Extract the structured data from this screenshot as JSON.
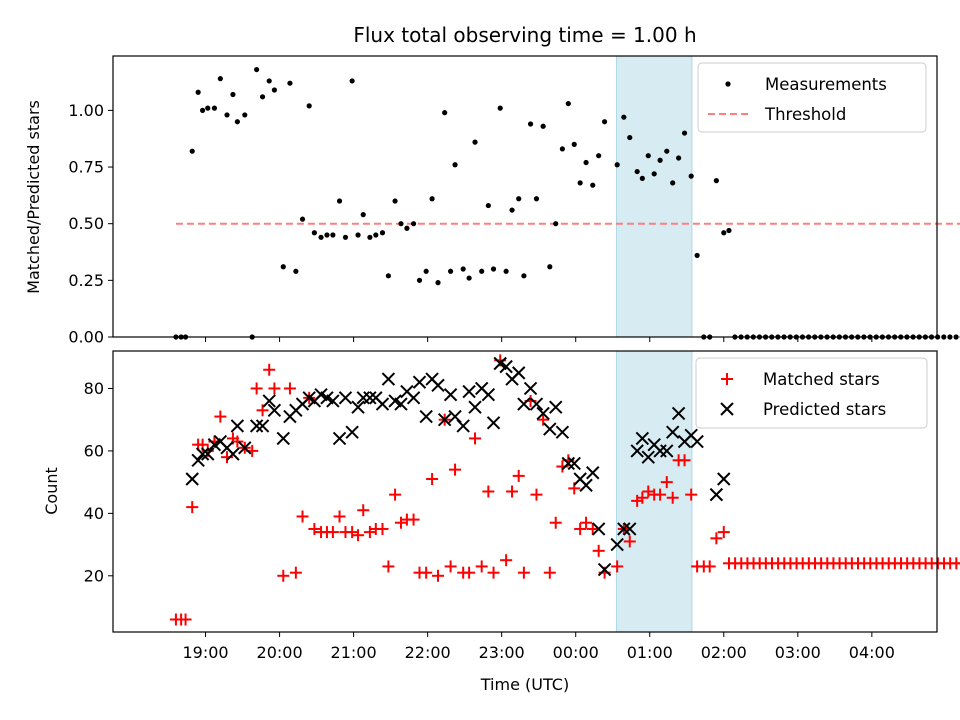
{
  "chart_data": [
    {
      "type": "scatter",
      "title": "Flux total observing time = 1.00 h",
      "xlabel": "",
      "ylabel": "Matched/Predicted stars",
      "ylim": [
        0,
        1.24
      ],
      "yticks": [
        "0.00",
        "0.25",
        "0.50",
        "0.75",
        "1.00"
      ],
      "xlim_hours": [
        17.75,
        28.88
      ],
      "highlight_band_hours": [
        24.55,
        25.57
      ],
      "highlight_color": "#add8e6",
      "legend_position": "upper right",
      "series": [
        {
          "name": "Measurements",
          "marker": "dot",
          "color": "#000000",
          "points": [
            [
              18.6,
              0.0
            ],
            [
              18.67,
              0.0
            ],
            [
              18.73,
              0.0
            ],
            [
              18.82,
              0.82
            ],
            [
              18.9,
              1.08
            ],
            [
              18.96,
              1.0
            ],
            [
              19.03,
              1.01
            ],
            [
              19.12,
              1.01
            ],
            [
              19.2,
              1.14
            ],
            [
              19.29,
              0.98
            ],
            [
              19.37,
              1.07
            ],
            [
              19.43,
              0.95
            ],
            [
              19.53,
              0.98
            ],
            [
              19.63,
              0.0
            ],
            [
              19.69,
              1.18
            ],
            [
              19.77,
              1.06
            ],
            [
              19.86,
              1.13
            ],
            [
              19.93,
              1.09
            ],
            [
              20.05,
              0.31
            ],
            [
              20.14,
              1.12
            ],
            [
              20.22,
              0.29
            ],
            [
              20.31,
              0.52
            ],
            [
              20.4,
              1.02
            ],
            [
              20.47,
              0.46
            ],
            [
              20.56,
              0.44
            ],
            [
              20.64,
              0.45
            ],
            [
              20.72,
              0.45
            ],
            [
              20.81,
              0.6
            ],
            [
              20.89,
              0.44
            ],
            [
              20.98,
              1.13
            ],
            [
              21.06,
              0.45
            ],
            [
              21.13,
              0.54
            ],
            [
              21.22,
              0.44
            ],
            [
              21.3,
              0.45
            ],
            [
              21.39,
              0.46
            ],
            [
              21.47,
              0.27
            ],
            [
              21.56,
              0.6
            ],
            [
              21.64,
              0.5
            ],
            [
              21.72,
              0.48
            ],
            [
              21.81,
              0.5
            ],
            [
              21.89,
              0.25
            ],
            [
              21.98,
              0.29
            ],
            [
              22.06,
              0.61
            ],
            [
              22.14,
              0.24
            ],
            [
              22.23,
              0.99
            ],
            [
              22.31,
              0.29
            ],
            [
              22.37,
              0.76
            ],
            [
              22.48,
              0.3
            ],
            [
              22.56,
              0.26
            ],
            [
              22.64,
              0.86
            ],
            [
              22.73,
              0.29
            ],
            [
              22.82,
              0.58
            ],
            [
              22.89,
              0.3
            ],
            [
              22.98,
              1.01
            ],
            [
              23.06,
              0.29
            ],
            [
              23.14,
              0.56
            ],
            [
              23.23,
              0.61
            ],
            [
              23.3,
              0.27
            ],
            [
              23.39,
              0.94
            ],
            [
              23.47,
              0.61
            ],
            [
              23.56,
              0.93
            ],
            [
              23.65,
              0.31
            ],
            [
              23.73,
              0.5
            ],
            [
              23.82,
              0.83
            ],
            [
              23.9,
              1.03
            ],
            [
              23.98,
              0.85
            ],
            [
              24.06,
              0.68
            ],
            [
              24.14,
              0.77
            ],
            [
              24.23,
              0.67
            ],
            [
              24.31,
              0.8
            ],
            [
              24.39,
              0.95
            ],
            [
              24.56,
              0.76
            ],
            [
              24.65,
              0.97
            ],
            [
              24.73,
              0.88
            ],
            [
              24.83,
              0.73
            ],
            [
              24.9,
              0.7
            ],
            [
              24.98,
              0.8
            ],
            [
              25.06,
              0.72
            ],
            [
              25.14,
              0.78
            ],
            [
              25.23,
              0.82
            ],
            [
              25.31,
              0.68
            ],
            [
              25.39,
              0.79
            ],
            [
              25.47,
              0.9
            ],
            [
              25.56,
              0.71
            ],
            [
              25.64,
              0.36
            ],
            [
              25.73,
              0.0
            ],
            [
              25.81,
              0.0
            ],
            [
              25.9,
              0.69
            ],
            [
              26.0,
              0.46
            ],
            [
              26.07,
              0.47
            ]
          ]
        },
        {
          "name": "Threshold",
          "marker": "dashed-line",
          "color": "#ff7f7f",
          "line_x_hours": [
            18.6,
            29.4
          ],
          "line_y": 0.5
        }
      ],
      "zero_series_from_hours": 26.15,
      "zero_series_to_hours": 29.4,
      "zero_series_step": 0.083
    },
    {
      "type": "scatter",
      "title": "",
      "xlabel": "Time (UTC)",
      "ylabel": "Count",
      "ylim": [
        2,
        92
      ],
      "yticks": [
        "20",
        "40",
        "60",
        "80"
      ],
      "xticks": [
        "19:00",
        "20:00",
        "21:00",
        "22:00",
        "23:00",
        "00:00",
        "01:00",
        "02:00",
        "03:00",
        "04:00"
      ],
      "legend_position": "upper right",
      "series": [
        {
          "name": "Matched stars",
          "marker": "plus",
          "color": "#ff0000",
          "points": [
            [
              18.6,
              6
            ],
            [
              18.67,
              6
            ],
            [
              18.73,
              6
            ],
            [
              18.82,
              42
            ],
            [
              18.9,
              62
            ],
            [
              18.96,
              62
            ],
            [
              19.03,
              60
            ],
            [
              19.12,
              63
            ],
            [
              19.2,
              71
            ],
            [
              19.29,
              58
            ],
            [
              19.37,
              64
            ],
            [
              19.43,
              63
            ],
            [
              19.53,
              61
            ],
            [
              19.63,
              60
            ],
            [
              19.69,
              80
            ],
            [
              19.77,
              73
            ],
            [
              19.86,
              86
            ],
            [
              19.93,
              80
            ],
            [
              20.05,
              20
            ],
            [
              20.14,
              80
            ],
            [
              20.22,
              21
            ],
            [
              20.31,
              39
            ],
            [
              20.4,
              77
            ],
            [
              20.47,
              35
            ],
            [
              20.56,
              34
            ],
            [
              20.64,
              34
            ],
            [
              20.72,
              34
            ],
            [
              20.81,
              39
            ],
            [
              20.89,
              34
            ],
            [
              20.98,
              34
            ],
            [
              21.06,
              33
            ],
            [
              21.13,
              41
            ],
            [
              21.22,
              34
            ],
            [
              21.3,
              35
            ],
            [
              21.39,
              35
            ],
            [
              21.47,
              23
            ],
            [
              21.56,
              46
            ],
            [
              21.64,
              37
            ],
            [
              21.72,
              38
            ],
            [
              21.81,
              38
            ],
            [
              21.89,
              21
            ],
            [
              21.98,
              21
            ],
            [
              22.06,
              51
            ],
            [
              22.14,
              20
            ],
            [
              22.23,
              70
            ],
            [
              22.31,
              23
            ],
            [
              22.37,
              54
            ],
            [
              22.48,
              21
            ],
            [
              22.56,
              21
            ],
            [
              22.64,
              64
            ],
            [
              22.73,
              23
            ],
            [
              22.82,
              47
            ],
            [
              22.89,
              21
            ],
            [
              22.98,
              89
            ],
            [
              23.06,
              25
            ],
            [
              23.14,
              47
            ],
            [
              23.23,
              52
            ],
            [
              23.3,
              21
            ],
            [
              23.39,
              76
            ],
            [
              23.47,
              46
            ],
            [
              23.56,
              70
            ],
            [
              23.65,
              21
            ],
            [
              23.73,
              37
            ],
            [
              23.82,
              55
            ],
            [
              23.9,
              57
            ],
            [
              23.98,
              48
            ],
            [
              24.06,
              35
            ],
            [
              24.14,
              37
            ],
            [
              24.23,
              35
            ],
            [
              24.31,
              28
            ],
            [
              24.39,
              21
            ],
            [
              24.56,
              23
            ],
            [
              24.65,
              35
            ],
            [
              24.73,
              31
            ],
            [
              24.83,
              44
            ],
            [
              24.9,
              45
            ],
            [
              24.98,
              47
            ],
            [
              25.06,
              46
            ],
            [
              25.14,
              46
            ],
            [
              25.23,
              50
            ],
            [
              25.31,
              45
            ],
            [
              25.39,
              57
            ],
            [
              25.47,
              57
            ],
            [
              25.56,
              46
            ],
            [
              25.64,
              23
            ],
            [
              25.73,
              23
            ],
            [
              25.81,
              23
            ],
            [
              25.9,
              32
            ],
            [
              26.0,
              34
            ]
          ]
        },
        {
          "name": "Predicted stars",
          "marker": "cross",
          "color": "#000000",
          "points": [
            [
              18.82,
              51
            ],
            [
              18.9,
              57
            ],
            [
              18.96,
              59
            ],
            [
              19.03,
              59
            ],
            [
              19.12,
              62
            ],
            [
              19.2,
              63
            ],
            [
              19.29,
              61
            ],
            [
              19.37,
              59
            ],
            [
              19.43,
              68
            ],
            [
              19.53,
              61
            ],
            [
              19.69,
              68
            ],
            [
              19.77,
              68
            ],
            [
              19.86,
              76
            ],
            [
              19.93,
              73
            ],
            [
              20.05,
              64
            ],
            [
              20.14,
              71
            ],
            [
              20.22,
              73
            ],
            [
              20.31,
              75
            ],
            [
              20.4,
              77
            ],
            [
              20.47,
              76
            ],
            [
              20.56,
              78
            ],
            [
              20.64,
              77
            ],
            [
              20.72,
              76
            ],
            [
              20.81,
              64
            ],
            [
              20.89,
              77
            ],
            [
              20.98,
              66
            ],
            [
              21.06,
              74
            ],
            [
              21.13,
              77
            ],
            [
              21.22,
              77
            ],
            [
              21.3,
              77
            ],
            [
              21.39,
              75
            ],
            [
              21.47,
              83
            ],
            [
              21.56,
              76
            ],
            [
              21.64,
              75
            ],
            [
              21.72,
              79
            ],
            [
              21.81,
              77
            ],
            [
              21.89,
              82
            ],
            [
              21.98,
              71
            ],
            [
              22.06,
              83
            ],
            [
              22.14,
              81
            ],
            [
              22.23,
              70
            ],
            [
              22.31,
              78
            ],
            [
              22.37,
              71
            ],
            [
              22.48,
              68
            ],
            [
              22.56,
              79
            ],
            [
              22.64,
              74
            ],
            [
              22.73,
              80
            ],
            [
              22.82,
              78
            ],
            [
              22.89,
              69
            ],
            [
              22.98,
              88
            ],
            [
              23.06,
              87
            ],
            [
              23.14,
              83
            ],
            [
              23.23,
              85
            ],
            [
              23.3,
              75
            ],
            [
              23.39,
              80
            ],
            [
              23.47,
              75
            ],
            [
              23.56,
              72
            ],
            [
              23.65,
              67
            ],
            [
              23.73,
              74
            ],
            [
              23.82,
              66
            ],
            [
              23.9,
              56
            ],
            [
              23.98,
              56
            ],
            [
              24.06,
              51
            ],
            [
              24.14,
              49
            ],
            [
              24.23,
              53
            ],
            [
              24.31,
              35
            ],
            [
              24.39,
              22
            ],
            [
              24.56,
              30
            ],
            [
              24.65,
              35
            ],
            [
              24.73,
              35
            ],
            [
              24.83,
              60
            ],
            [
              24.9,
              64
            ],
            [
              24.98,
              58
            ],
            [
              25.06,
              62
            ],
            [
              25.14,
              60
            ],
            [
              25.23,
              60
            ],
            [
              25.31,
              66
            ],
            [
              25.39,
              72
            ],
            [
              25.47,
              63
            ],
            [
              25.56,
              65
            ],
            [
              25.64,
              63
            ],
            [
              25.9,
              46
            ],
            [
              26.0,
              51
            ]
          ]
        }
      ],
      "matched_flat_from_hours": 26.07,
      "matched_flat_to_hours": 29.4,
      "matched_flat_step": 0.083,
      "matched_flat_value": 24
    }
  ]
}
